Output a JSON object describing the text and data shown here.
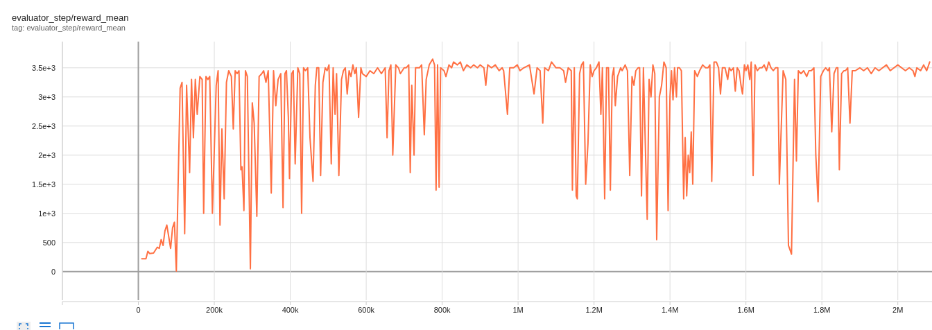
{
  "chart_data": {
    "type": "line",
    "title": "evaluator_step/reward_mean",
    "subtitle": "tag: evaluator_step/reward_mean",
    "grid": true,
    "xlim": [
      -200000,
      2090000
    ],
    "xticks": [
      {
        "value": -200000,
        "label": null
      },
      {
        "value": 0,
        "label": "0"
      },
      {
        "value": 200000,
        "label": "200k"
      },
      {
        "value": 400000,
        "label": "400k"
      },
      {
        "value": 600000,
        "label": "600k"
      },
      {
        "value": 800000,
        "label": "800k"
      },
      {
        "value": 1000000,
        "label": "1M"
      },
      {
        "value": 1200000,
        "label": "1.2M"
      },
      {
        "value": 1400000,
        "label": "1.4M"
      },
      {
        "value": 1600000,
        "label": "1.6M"
      },
      {
        "value": 1800000,
        "label": "1.8M"
      },
      {
        "value": 2000000,
        "label": "2M"
      }
    ],
    "ylim": [
      -490,
      3950
    ],
    "yticks": [
      0,
      500,
      {
        "value": 1000,
        "label": "1e+3"
      },
      {
        "value": 1500,
        "label": "1.5e+3"
      },
      {
        "value": 2000,
        "label": "2e+3"
      },
      {
        "value": 2500,
        "label": "2.5e+3"
      },
      {
        "value": 3000,
        "label": "3e+3"
      },
      {
        "value": 3500,
        "label": "3.5e+3"
      }
    ],
    "x": [
      9000,
      20000,
      25000,
      30000,
      40000,
      50000,
      55000,
      60000,
      65000,
      70000,
      75000,
      85000,
      90000,
      95000,
      100000,
      110000,
      115000,
      122000,
      127000,
      135000,
      140000,
      145000,
      150000,
      155000,
      162000,
      168000,
      172000,
      178000,
      183000,
      188000,
      195000,
      205000,
      210000,
      215000,
      220000,
      226000,
      232000,
      238000,
      245000,
      250000,
      255000,
      260000,
      265000,
      270000,
      273000,
      278000,
      282000,
      287000,
      295000,
      300000,
      305000,
      312000,
      318000,
      325000,
      330000,
      336000,
      342000,
      350000,
      356000,
      362000,
      368000,
      375000,
      381000,
      386000,
      390000,
      395000,
      398000,
      404000,
      408000,
      413000,
      420000,
      425000,
      430000,
      435000,
      440000,
      446000,
      452000,
      460000,
      466000,
      470000,
      475000,
      480000,
      486000,
      492000,
      497000,
      502000,
      508000,
      513000,
      518000,
      522000,
      528000,
      535000,
      540000,
      545000,
      550000,
      555000,
      560000,
      565000,
      570000,
      574000,
      580000,
      586000,
      590000,
      600000,
      610000,
      620000,
      630000,
      640000,
      650000,
      655000,
      660000,
      665000,
      670000,
      678000,
      685000,
      690000,
      700000,
      705000,
      712000,
      716000,
      720000,
      726000,
      730000,
      740000,
      746000,
      753000,
      758000,
      766000,
      775000,
      780000,
      784000,
      788000,
      792000,
      796000,
      805000,
      810000,
      818000,
      825000,
      830000,
      840000,
      848000,
      856000,
      865000,
      875000,
      883000,
      893000,
      900000,
      910000,
      915000,
      920000,
      930000,
      940000,
      950000,
      958000,
      962000,
      972000,
      978000,
      988000,
      998000,
      1005000,
      1015000,
      1030000,
      1042000,
      1050000,
      1058000,
      1065000,
      1070000,
      1080000,
      1088000,
      1100000,
      1110000,
      1120000,
      1125000,
      1132000,
      1140000,
      1143000,
      1148000,
      1153000,
      1156000,
      1162000,
      1167000,
      1172000,
      1178000,
      1184000,
      1190000,
      1195000,
      1200000,
      1206000,
      1213000,
      1218000,
      1222000,
      1228000,
      1233000,
      1238000,
      1243000,
      1248000,
      1252000,
      1256000,
      1262000,
      1270000,
      1274000,
      1282000,
      1288000,
      1294000,
      1300000,
      1305000,
      1310000,
      1316000,
      1320000,
      1325000,
      1330000,
      1340000,
      1345000,
      1350000,
      1355000,
      1360000,
      1365000,
      1372000,
      1378000,
      1384000,
      1390000,
      1395000,
      1400000,
      1404000,
      1408000,
      1412000,
      1417000,
      1420000,
      1425000,
      1430000,
      1436000,
      1440000,
      1444000,
      1448000,
      1452000,
      1456000,
      1460000,
      1465000,
      1472000,
      1478000,
      1486000,
      1494000,
      1500000,
      1505000,
      1510000,
      1516000,
      1522000,
      1528000,
      1533000,
      1538000,
      1545000,
      1552000,
      1556000,
      1561000,
      1567000,
      1572000,
      1577000,
      1582000,
      1587000,
      1591000,
      1596000,
      1600000,
      1605000,
      1610000,
      1614000,
      1619000,
      1624000,
      1630000,
      1636000,
      1642000,
      1648000,
      1654000,
      1660000,
      1666000,
      1672000,
      1678000,
      1684000,
      1688000,
      1698000,
      1705000,
      1712000,
      1720000,
      1728000,
      1733000,
      1738000,
      1745000,
      1752000,
      1760000,
      1766000,
      1772000,
      1779000,
      1784000,
      1790000,
      1797000,
      1804000,
      1810000,
      1816000,
      1820000,
      1826000,
      1832000,
      1838000,
      1842000,
      1846000,
      1852000,
      1858000,
      1862000,
      1868000,
      1874000,
      1880000,
      1888000,
      1900000,
      1910000,
      1920000,
      1930000,
      1940000,
      1950000,
      1960000,
      1970000,
      1980000,
      1990000,
      2000000,
      2010000,
      2020000,
      2030000,
      2040000,
      2045000,
      2050000,
      2060000,
      2068000,
      2076000,
      2084000
    ],
    "series": [
      {
        "color": "#ff7043",
        "values": [
          220,
          220,
          350,
          310,
          320,
          420,
          400,
          550,
          450,
          700,
          800,
          400,
          750,
          850,
          10,
          3150,
          3250,
          650,
          3200,
          1700,
          3300,
          2300,
          3300,
          2700,
          3350,
          3300,
          1000,
          3350,
          3300,
          3350,
          1000,
          3200,
          3450,
          800,
          2450,
          1250,
          3250,
          3450,
          3350,
          2450,
          3450,
          3400,
          3450,
          1750,
          1800,
          1050,
          3450,
          3350,
          50,
          2900,
          2550,
          950,
          3350,
          3400,
          3450,
          3250,
          3450,
          1350,
          3450,
          2850,
          3300,
          3400,
          1100,
          3400,
          3450,
          2650,
          1600,
          3400,
          3450,
          1850,
          3500,
          3400,
          1000,
          3500,
          3450,
          3500,
          2300,
          1550,
          3200,
          3500,
          3500,
          1650,
          3250,
          3500,
          3450,
          3550,
          1850,
          3500,
          2700,
          3400,
          1650,
          3300,
          3450,
          3500,
          3050,
          3450,
          3350,
          3550,
          3400,
          3500,
          2650,
          3500,
          3400,
          3350,
          3450,
          3400,
          3500,
          3400,
          3500,
          2300,
          3450,
          3550,
          2000,
          3550,
          3500,
          3400,
          3500,
          3500,
          3550,
          1700,
          3200,
          2000,
          3500,
          3500,
          3550,
          2350,
          3300,
          3550,
          3650,
          3550,
          1400,
          3550,
          1450,
          3500,
          3450,
          3350,
          3550,
          3500,
          3600,
          3550,
          3600,
          3450,
          3550,
          3500,
          3550,
          3500,
          3550,
          3500,
          3200,
          3550,
          3500,
          3550,
          3450,
          3500,
          3450,
          2700,
          3500,
          3500,
          3550,
          3450,
          3500,
          3550,
          3050,
          3500,
          3450,
          2550,
          3500,
          3450,
          3600,
          3500,
          3500,
          3450,
          3250,
          3500,
          3450,
          1400,
          3500,
          1300,
          1250,
          3400,
          3550,
          3600,
          1500,
          2200,
          3550,
          3350,
          3450,
          3500,
          3600,
          2700,
          3500,
          1250,
          3500,
          3500,
          1400,
          3350,
          3500,
          2850,
          3350,
          3500,
          3450,
          3550,
          3450,
          1650,
          3350,
          3200,
          3450,
          3500,
          3500,
          1300,
          3500,
          900,
          3300,
          3000,
          3550,
          3400,
          550,
          3000,
          3200,
          3600,
          3500,
          1050,
          3000,
          3450,
          2950,
          3500,
          3000,
          3500,
          3500,
          3450,
          1250,
          2300,
          1300,
          2000,
          1700,
          2400,
          1500,
          3450,
          3350,
          3450,
          3550,
          3500,
          3500,
          3550,
          1550,
          3600,
          3600,
          3500,
          3050,
          3500,
          3500,
          3300,
          3500,
          3450,
          3500,
          3100,
          3500,
          3450,
          3200,
          3050,
          3550,
          3450,
          3550,
          3300,
          3600,
          1650,
          3550,
          3450,
          3500,
          3500,
          3550,
          3450,
          3600,
          3500,
          3450,
          3500,
          3500,
          1500,
          3450,
          3300,
          450,
          300,
          3300,
          1900,
          3450,
          3400,
          3450,
          3350,
          3450,
          3450,
          3500,
          2000,
          1200,
          3350,
          3450,
          3500,
          3450,
          3500,
          2400,
          3400,
          3500,
          3500,
          1750,
          3400,
          3450,
          3450,
          3500,
          2550,
          3450,
          3450,
          3500,
          3450,
          3500,
          3400,
          3500,
          3450,
          3500,
          3550,
          3450,
          3500,
          3550,
          3500,
          3450,
          3500,
          3450,
          3350,
          3500,
          3450,
          3550,
          3450,
          3600
        ]
      }
    ]
  }
}
